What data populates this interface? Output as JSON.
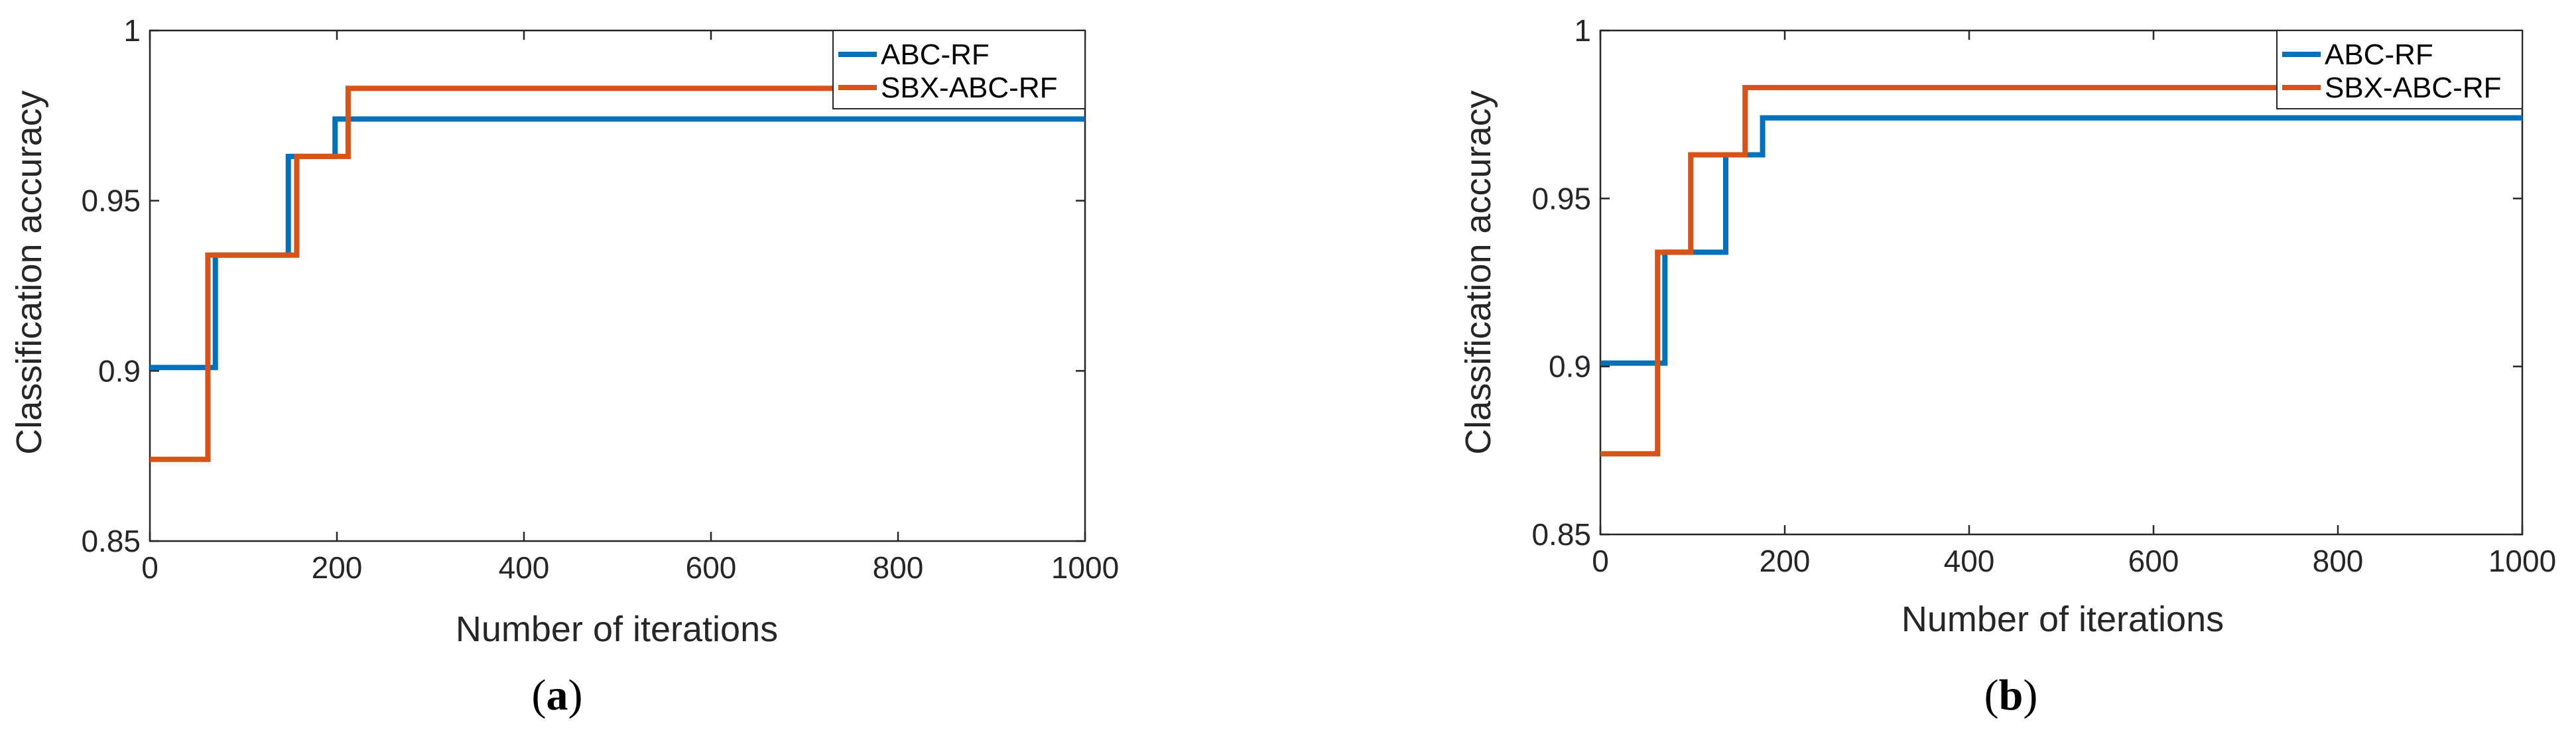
{
  "chart_data": [
    {
      "panel_label": "a",
      "type": "line",
      "xlabel": "Number of iterations",
      "ylabel": "Classification accuracy",
      "xlim": [
        0,
        1000
      ],
      "ylim": [
        0.85,
        1
      ],
      "xticks": [
        "0",
        "200",
        "400",
        "600",
        "800",
        "1000"
      ],
      "yticks": [
        "0.85",
        "0.9",
        "0.95",
        "1"
      ],
      "grid": false,
      "legend_position": "top-right",
      "series": [
        {
          "name": "ABC-RF",
          "color": "#0072BD",
          "x": [
            0,
            70,
            70,
            148,
            148,
            198,
            198,
            1000
          ],
          "y": [
            0.901,
            0.901,
            0.934,
            0.934,
            0.963,
            0.963,
            0.974,
            0.974
          ]
        },
        {
          "name": "SBX-ABC-RF",
          "color": "#D95319",
          "x": [
            0,
            62,
            62,
            157,
            157,
            212,
            212,
            1000
          ],
          "y": [
            0.874,
            0.874,
            0.934,
            0.934,
            0.963,
            0.963,
            0.983,
            0.983
          ]
        }
      ]
    },
    {
      "panel_label": "b",
      "type": "line",
      "xlabel": "Number of iterations",
      "ylabel": "Classification accuracy",
      "xlim": [
        0,
        1000
      ],
      "ylim": [
        0.85,
        1
      ],
      "xticks": [
        "0",
        "200",
        "400",
        "600",
        "800",
        "1000"
      ],
      "yticks": [
        "0.85",
        "0.9",
        "0.95",
        "1"
      ],
      "grid": false,
      "legend_position": "top-right",
      "series": [
        {
          "name": "ABC-RF",
          "color": "#0072BD",
          "x": [
            0,
            70,
            70,
            136,
            136,
            176,
            176,
            1000
          ],
          "y": [
            0.901,
            0.901,
            0.934,
            0.934,
            0.963,
            0.963,
            0.974,
            0.974
          ]
        },
        {
          "name": "SBX-ABC-RF",
          "color": "#D95319",
          "x": [
            0,
            62,
            62,
            98,
            98,
            157,
            157,
            1000
          ],
          "y": [
            0.874,
            0.874,
            0.934,
            0.934,
            0.963,
            0.963,
            0.983,
            0.983
          ]
        }
      ]
    }
  ]
}
